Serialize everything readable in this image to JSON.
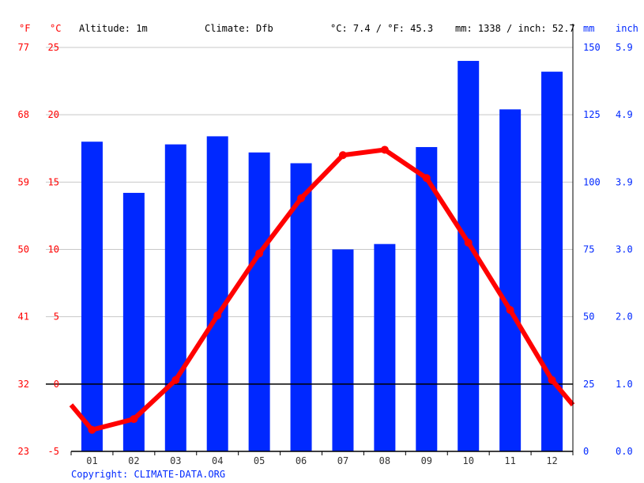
{
  "header": {
    "f_unit": "°F",
    "c_unit": "°C",
    "altitude": "Altitude: 1m",
    "climate": "Climate: Dfb",
    "temp_avg": "°C: 7.4 / °F: 45.3",
    "precip_total": "mm: 1338 / inch: 52.7",
    "mm_unit": "mm",
    "inch_unit": "inch"
  },
  "copyright": "Copyright: CLIMATE-DATA.ORG",
  "colors": {
    "temperature": "#ff0000",
    "precipitation": "#0028ff",
    "axis_right": "#0028ff",
    "axis_left": "#ff0000"
  },
  "chart_data": {
    "type": "bar+line",
    "categories": [
      "01",
      "02",
      "03",
      "04",
      "05",
      "06",
      "07",
      "08",
      "09",
      "10",
      "11",
      "12"
    ],
    "series": [
      {
        "type": "bar",
        "axis": "right",
        "unit": "mm",
        "values": [
          115,
          96,
          114,
          117,
          111,
          107,
          75,
          77,
          113,
          145,
          127,
          141
        ]
      },
      {
        "type": "line",
        "axis": "left",
        "unit": "°C",
        "values": [
          -3.4,
          -2.6,
          0.3,
          5.1,
          9.7,
          13.8,
          17.0,
          17.4,
          15.3,
          10.5,
          5.5,
          0.3
        ]
      }
    ],
    "left_axis_c": {
      "range": [
        -5,
        25
      ],
      "ticks": [
        "-5",
        "0",
        "5",
        "10",
        "15",
        "20",
        "25"
      ]
    },
    "left_axis_f": {
      "ticks": [
        "23",
        "32",
        "41",
        "50",
        "59",
        "68",
        "77"
      ]
    },
    "right_axis_mm": {
      "range": [
        0,
        150
      ],
      "ticks": [
        "0",
        "25",
        "50",
        "75",
        "100",
        "125",
        "150"
      ]
    },
    "right_axis_inch": {
      "ticks": [
        "0.0",
        "1.0",
        "2.0",
        "3.0",
        "3.9",
        "4.9",
        "5.9"
      ]
    },
    "grid": true
  }
}
